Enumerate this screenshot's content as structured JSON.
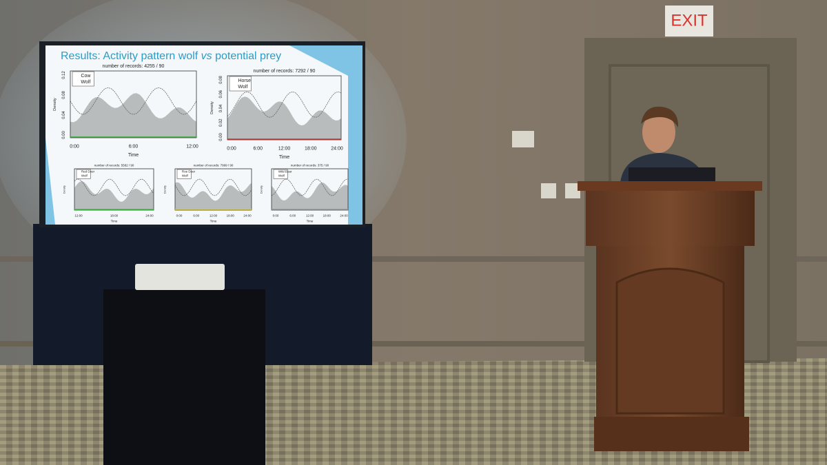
{
  "slide": {
    "title_start": "Results: Activity pattern wolf ",
    "title_em": "vs",
    "title_end": " potential prey",
    "panels": [
      {
        "header": "number of records: 4255 / 90",
        "legend": [
          "Cow",
          "Wolf"
        ],
        "y_label": "Density",
        "x_label": "Time",
        "yticks": [
          "0.00",
          "0.04",
          "0.08",
          "0.12"
        ],
        "xticks": [
          "0:00",
          "6:00",
          "12:00"
        ]
      },
      {
        "header": "number of records: 7292 / 90",
        "legend": [
          "Horse",
          "Wolf"
        ],
        "y_label": "Density",
        "x_label": "Time",
        "yticks": [
          "0.00",
          "0.02",
          "0.04",
          "0.06",
          "0.08"
        ],
        "xticks": [
          "0:00",
          "6:00",
          "12:00",
          "18:00",
          "24:00"
        ]
      },
      {
        "header": "number of records: 5582 / 90",
        "legend": [
          "Red Deer",
          "Wolf"
        ],
        "y_label": "Density",
        "x_label": "Time",
        "yticks": [],
        "xticks": [
          "12:00",
          "18:00",
          "24:00"
        ]
      },
      {
        "header": "number of records: 7999 / 90",
        "legend": [
          "Roe Deer",
          "Wolf"
        ],
        "y_label": "Density",
        "x_label": "Time",
        "yticks": [],
        "xticks": [
          "0:00",
          "6:00",
          "12:00",
          "18:00",
          "24:00"
        ]
      },
      {
        "header": "number of records: 375 / 90",
        "legend": [
          "Wild Boar",
          "Wolf"
        ],
        "y_label": "Density",
        "x_label": "Time",
        "yticks": [],
        "xticks": [
          "0:00",
          "6:00",
          "12:00",
          "18:00",
          "24:00"
        ]
      }
    ]
  },
  "exit_sign": "EXIT"
}
